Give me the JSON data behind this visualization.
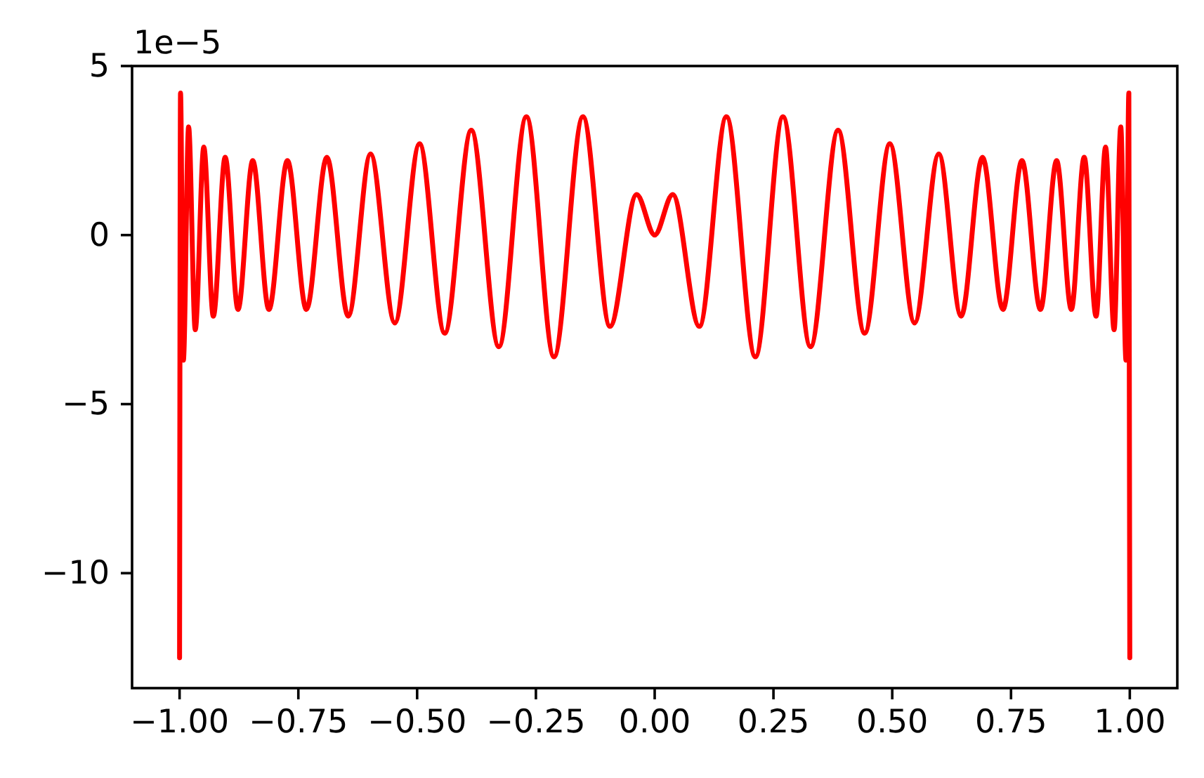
{
  "chart_data": {
    "type": "line",
    "annotations": [
      "1e−5"
    ],
    "x": [
      -1.0,
      -0.998,
      -0.992,
      -0.981,
      -0.967,
      -0.949,
      -0.929,
      -0.904,
      -0.877,
      -0.846,
      -0.812,
      -0.773,
      -0.733,
      -0.69,
      -0.645,
      -0.598,
      -0.547,
      -0.495,
      -0.442,
      -0.386,
      -0.328,
      -0.27,
      -0.212,
      -0.151,
      -0.094,
      -0.038,
      0,
      0.038,
      0.094,
      0.151,
      0.212,
      0.27,
      0.328,
      0.386,
      0.442,
      0.495,
      0.547,
      0.598,
      0.645,
      0.69,
      0.733,
      0.773,
      0.812,
      0.846,
      0.877,
      0.904,
      0.929,
      0.949,
      0.967,
      0.981,
      0.992,
      0.998,
      1.0
    ],
    "series": [
      {
        "color": "#ff0000",
        "values": [
          -12.5,
          4.2,
          -3.7,
          3.2,
          -2.8,
          2.6,
          -2.4,
          2.3,
          -2.2,
          2.2,
          -2.2,
          2.2,
          -2.2,
          2.3,
          -2.4,
          2.4,
          -2.6,
          2.7,
          -2.9,
          3.1,
          -3.3,
          3.5,
          -3.6,
          3.5,
          -2.7,
          1.2,
          0,
          1.2,
          -2.7,
          3.5,
          -3.6,
          3.5,
          -3.3,
          3.1,
          -2.9,
          2.7,
          -2.6,
          2.4,
          -2.4,
          2.3,
          -2.2,
          2.2,
          -2.2,
          2.2,
          -2.2,
          2.3,
          -2.4,
          2.6,
          -2.8,
          3.2,
          -3.7,
          4.2,
          -12.5
        ]
      }
    ],
    "xlim": [
      -1.1,
      1.1
    ],
    "ylim": [
      -13.4,
      5.0
    ],
    "xticks": [
      {
        "value": -1,
        "label": "−1.00"
      },
      {
        "value": -0.75,
        "label": "−0.75"
      },
      {
        "value": -0.5,
        "label": "−0.50"
      },
      {
        "value": -0.25,
        "label": "−0.25"
      },
      {
        "value": 0,
        "label": "0.00"
      },
      {
        "value": 0.25,
        "label": "0.25"
      },
      {
        "value": 0.5,
        "label": "0.50"
      },
      {
        "value": 0.75,
        "label": "0.75"
      },
      {
        "value": 1,
        "label": "1.00"
      }
    ],
    "yticks": [
      5,
      0,
      {
        "value": -5,
        "label": "−5"
      },
      {
        "value": -10,
        "label": "−10"
      }
    ]
  }
}
